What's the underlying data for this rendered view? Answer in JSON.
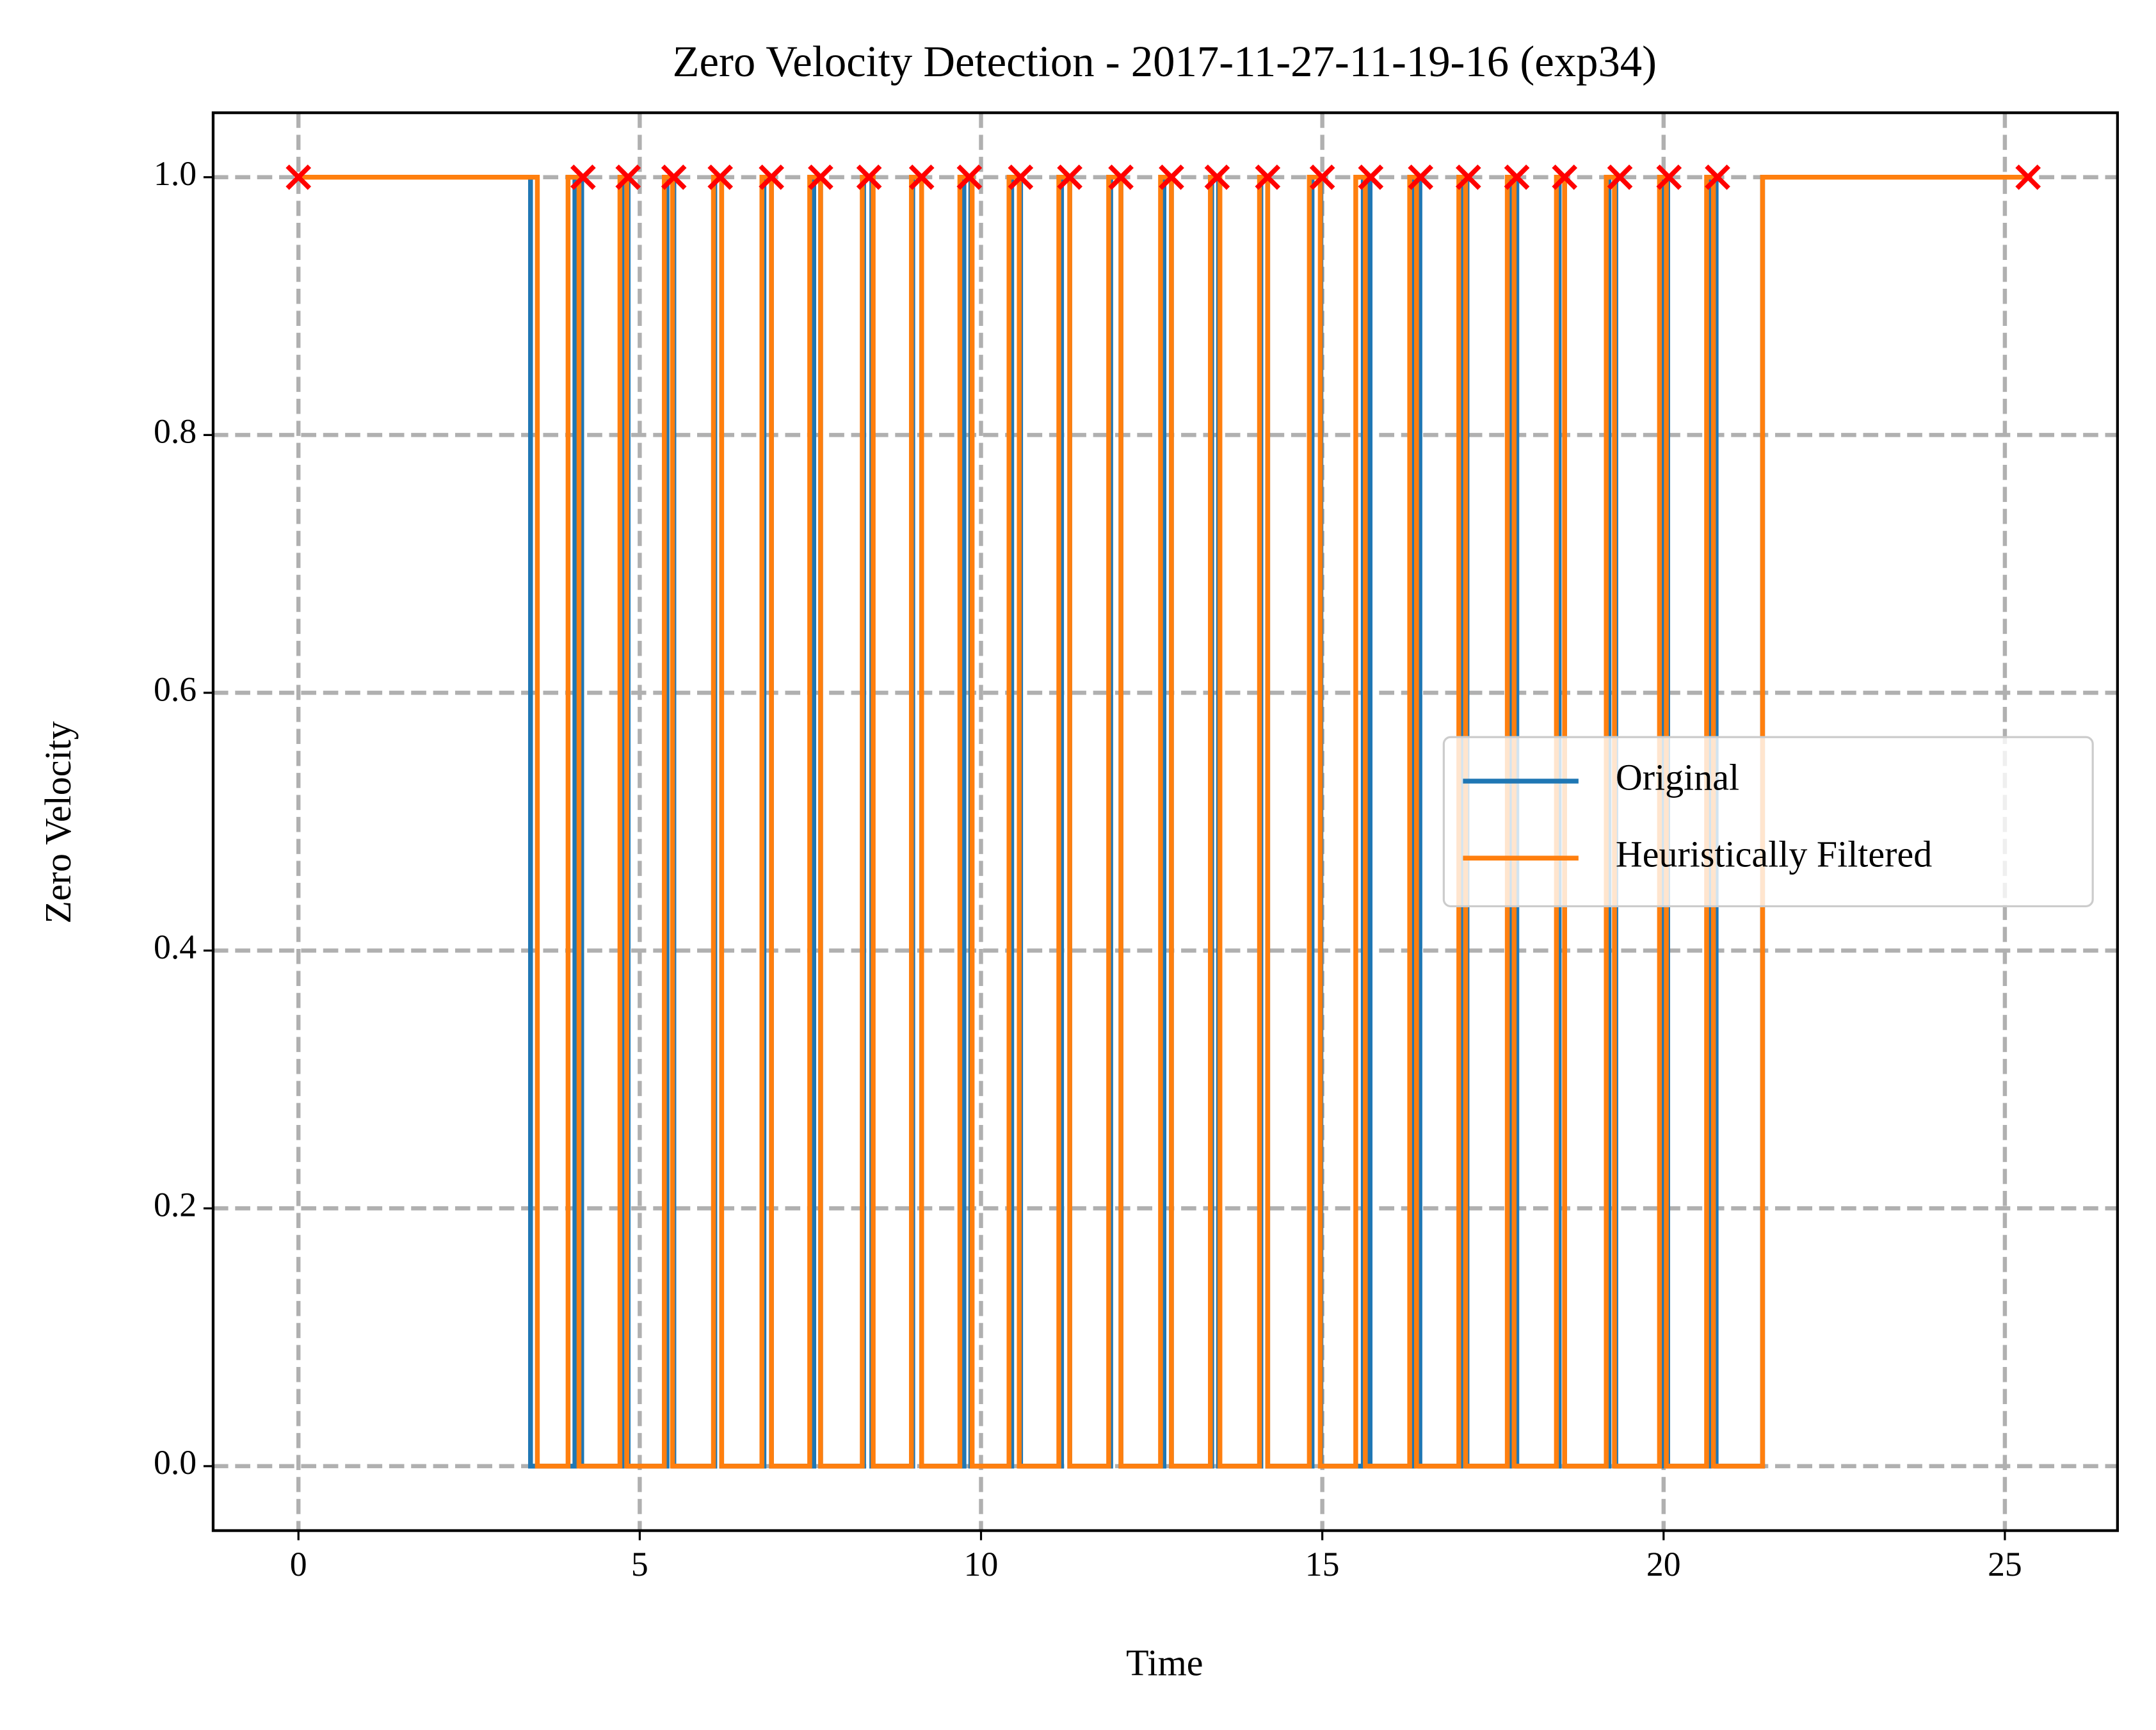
{
  "chart_data": {
    "type": "step",
    "title": "Zero Velocity Detection - 2017-11-27-11-19-16 (exp34)",
    "xlabel": "Time",
    "ylabel": "Zero Velocity",
    "xlim": [
      -1.25,
      26.65
    ],
    "ylim": [
      -0.05,
      1.05
    ],
    "xticks": [
      0,
      5,
      10,
      15,
      20,
      25
    ],
    "yticks": [
      {
        "value": 0,
        "label": "0.0"
      },
      {
        "value": 0.2,
        "label": "0.2"
      },
      {
        "value": 0.4,
        "label": "0.4"
      },
      {
        "value": 0.6,
        "label": "0.6"
      },
      {
        "value": 0.8,
        "label": "0.8"
      },
      {
        "value": 1,
        "label": "1.0"
      }
    ],
    "grid": true,
    "legend": "center right",
    "series": [
      {
        "name": "Original",
        "color": "#1f77b4",
        "x": [
          0,
          3.4,
          4.05,
          4.15,
          4.74,
          4.83,
          5.4,
          5.5,
          6.1,
          6.2,
          6.82,
          6.93,
          7.55,
          7.65,
          8.28,
          8.4,
          9.0,
          9.13,
          9.75,
          9.85,
          10.45,
          10.58,
          11.18,
          11.3,
          11.9,
          12.05,
          12.68,
          12.79,
          13.38,
          13.48,
          14.1,
          14.2,
          14.85,
          14.98,
          15.6,
          15.7,
          16.33,
          16.43,
          17.03,
          17.12,
          17.75,
          17.85,
          18.47,
          18.55,
          19.2,
          19.3,
          19.98,
          20.06,
          20.67,
          20.77,
          21.45,
          25.4
        ],
        "values": [
          1,
          0,
          1,
          0,
          1,
          0,
          1,
          0,
          1,
          0,
          1,
          0,
          1,
          0,
          1,
          0,
          1,
          0,
          1,
          0,
          1,
          0,
          1,
          0,
          1,
          0,
          1,
          0,
          1,
          0,
          1,
          0,
          1,
          0,
          1,
          0,
          1,
          0,
          1,
          0,
          1,
          0,
          1,
          0,
          1,
          0,
          1,
          0,
          1,
          0,
          1,
          1
        ]
      },
      {
        "name": "Heuristically Filtered",
        "color": "#ff7f0e",
        "x": [
          0,
          3.5,
          3.95,
          4.11,
          4.71,
          4.81,
          5.36,
          5.48,
          6.08,
          6.2,
          6.79,
          6.93,
          7.49,
          7.65,
          8.26,
          8.42,
          8.98,
          9.13,
          9.69,
          9.87,
          10.41,
          10.56,
          11.14,
          11.3,
          11.87,
          12.05,
          12.63,
          12.79,
          13.36,
          13.5,
          14.08,
          14.2,
          14.81,
          14.97,
          15.49,
          15.63,
          16.28,
          16.38,
          17.0,
          17.1,
          17.71,
          17.81,
          18.43,
          18.55,
          19.16,
          19.28,
          19.94,
          20.04,
          20.63,
          20.73,
          21.45,
          25.4
        ],
        "values": [
          1,
          0,
          1,
          0,
          1,
          0,
          1,
          0,
          1,
          0,
          1,
          0,
          1,
          0,
          1,
          0,
          1,
          0,
          1,
          0,
          1,
          0,
          1,
          0,
          1,
          0,
          1,
          0,
          1,
          0,
          1,
          0,
          1,
          0,
          1,
          0,
          1,
          0,
          1,
          0,
          1,
          0,
          1,
          0,
          1,
          0,
          1,
          0,
          1,
          0,
          1,
          1
        ]
      }
    ],
    "markers": {
      "color": "#ff0000",
      "x": [
        0,
        4.17,
        4.83,
        5.5,
        6.18,
        6.93,
        7.65,
        8.36,
        9.13,
        9.83,
        10.58,
        11.3,
        12.05,
        12.79,
        13.46,
        14.2,
        15.0,
        15.71,
        16.44,
        17.14,
        17.85,
        18.55,
        19.36,
        20.08,
        20.79,
        25.34
      ],
      "values": [
        1,
        1,
        1,
        1,
        1,
        1,
        1,
        1,
        1,
        1,
        1,
        1,
        1,
        1,
        1,
        1,
        1,
        1,
        1,
        1,
        1,
        1,
        1,
        1,
        1,
        1
      ]
    }
  }
}
